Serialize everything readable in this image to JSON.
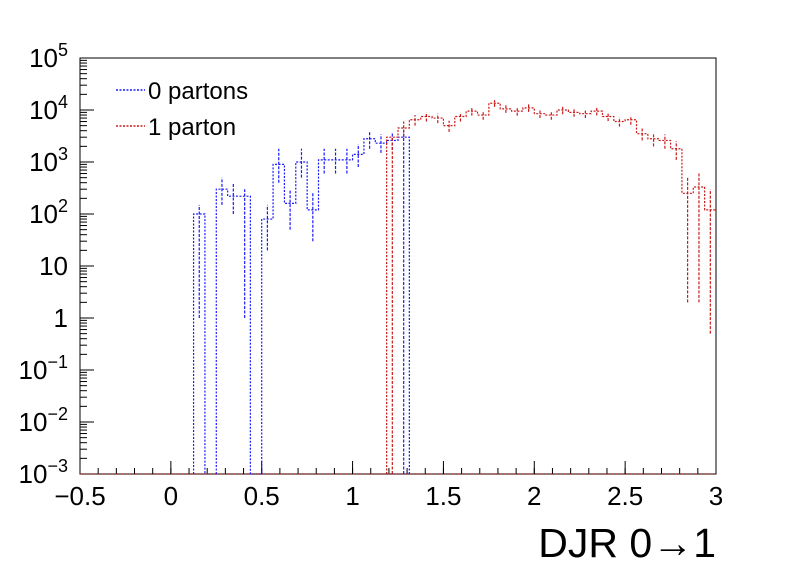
{
  "chart_data": {
    "type": "line",
    "style": "step-histogram",
    "xlabel": "DJR 0→1",
    "ylabel": "",
    "xlim": [
      -0.5,
      3.0
    ],
    "ylim": [
      0.001,
      100000
    ],
    "yscale": "log",
    "grid": false,
    "legend_position": "top-left",
    "x_ticks": [
      {
        "value": -0.5,
        "label": "−0.5"
      },
      {
        "value": 0,
        "label": "0"
      },
      {
        "value": 0.5,
        "label": "0.5"
      },
      {
        "value": 1,
        "label": "1"
      },
      {
        "value": 1.5,
        "label": "1.5"
      },
      {
        "value": 2,
        "label": "2"
      },
      {
        "value": 2.5,
        "label": "2.5"
      },
      {
        "value": 3,
        "label": "3"
      }
    ],
    "y_ticks": [
      {
        "value": 0.001,
        "base": "10",
        "exp": "−3"
      },
      {
        "value": 0.01,
        "base": "10",
        "exp": "−2"
      },
      {
        "value": 0.1,
        "base": "10",
        "exp": "−1"
      },
      {
        "value": 1,
        "base": "1",
        "exp": ""
      },
      {
        "value": 10,
        "base": "10",
        "exp": ""
      },
      {
        "value": 100,
        "base": "10",
        "exp": "2"
      },
      {
        "value": 1000,
        "base": "10",
        "exp": "3"
      },
      {
        "value": 10000,
        "base": "10",
        "exp": "4"
      },
      {
        "value": 100000,
        "base": "10",
        "exp": "5"
      }
    ],
    "bin_width": 0.0625,
    "series": [
      {
        "name": "0 partons",
        "color": "#1a1aff",
        "line_style": "dotted",
        "bins": [
          {
            "lo": 0.125,
            "hi": 0.1875,
            "y": 100,
            "err_lo": 1,
            "err_hi": 150
          },
          {
            "lo": 0.25,
            "hi": 0.3125,
            "y": 300,
            "err_lo": 150,
            "err_hi": 500
          },
          {
            "lo": 0.3125,
            "hi": 0.375,
            "y": 220,
            "err_lo": 100,
            "err_hi": 400
          },
          {
            "lo": 0.375,
            "hi": 0.4375,
            "y": 220,
            "err_lo": 1,
            "err_hi": 300
          },
          {
            "lo": 0.4375,
            "hi": 0.5,
            "y": 0.001
          },
          {
            "lo": 0.5,
            "hi": 0.5625,
            "y": 80,
            "err_lo": 20,
            "err_hi": 150
          },
          {
            "lo": 0.5625,
            "hi": 0.625,
            "y": 900,
            "err_lo": 400,
            "err_hi": 1800
          },
          {
            "lo": 0.625,
            "hi": 0.6875,
            "y": 160,
            "err_lo": 50,
            "err_hi": 300
          },
          {
            "lo": 0.6875,
            "hi": 0.75,
            "y": 1000,
            "err_lo": 500,
            "err_hi": 1800
          },
          {
            "lo": 0.75,
            "hi": 0.8125,
            "y": 120,
            "err_lo": 30,
            "err_hi": 250
          },
          {
            "lo": 0.8125,
            "hi": 0.875,
            "y": 1100,
            "err_lo": 600,
            "err_hi": 1800
          },
          {
            "lo": 0.875,
            "hi": 0.9375,
            "y": 1100,
            "err_lo": 600,
            "err_hi": 1800
          },
          {
            "lo": 0.9375,
            "hi": 1.0,
            "y": 1100,
            "err_lo": 600,
            "err_hi": 1800
          },
          {
            "lo": 1.0,
            "hi": 1.0625,
            "y": 1400,
            "err_lo": 800,
            "err_hi": 2200
          },
          {
            "lo": 1.0625,
            "hi": 1.125,
            "y": 2800,
            "err_lo": 1800,
            "err_hi": 4000
          },
          {
            "lo": 1.125,
            "hi": 1.1875,
            "y": 2300,
            "err_lo": 1500,
            "err_hi": 3400
          },
          {
            "lo": 1.1875,
            "hi": 1.25,
            "y": 2600,
            "err_lo": 1700,
            "err_hi": 3600
          },
          {
            "lo": 1.25,
            "hi": 1.3125,
            "y": 3000,
            "err_lo": 0.001,
            "err_hi": 4200
          }
        ]
      },
      {
        "name": "1 parton",
        "color": "#cc1a1a",
        "line_style": "dotted",
        "bins": [
          {
            "lo": 1.1875,
            "hi": 1.25,
            "y": 3000,
            "err_lo": 0.001,
            "err_hi": 3000
          },
          {
            "lo": 1.25,
            "hi": 1.3125,
            "y": 4500,
            "err_lo": 3000,
            "err_hi": 6000
          },
          {
            "lo": 1.3125,
            "hi": 1.375,
            "y": 6500,
            "err_lo": 5000,
            "err_hi": 8000
          },
          {
            "lo": 1.375,
            "hi": 1.4375,
            "y": 7500,
            "err_lo": 6000,
            "err_hi": 9000
          },
          {
            "lo": 1.4375,
            "hi": 1.5,
            "y": 7000,
            "err_lo": 5600,
            "err_hi": 8500
          },
          {
            "lo": 1.5,
            "hi": 1.5625,
            "y": 5000,
            "err_lo": 3800,
            "err_hi": 6200
          },
          {
            "lo": 1.5625,
            "hi": 1.625,
            "y": 7500,
            "err_lo": 6000,
            "err_hi": 9000
          },
          {
            "lo": 1.625,
            "hi": 1.6875,
            "y": 9500,
            "err_lo": 7800,
            "err_hi": 11200
          },
          {
            "lo": 1.6875,
            "hi": 1.75,
            "y": 8000,
            "err_lo": 6500,
            "err_hi": 9600
          },
          {
            "lo": 1.75,
            "hi": 1.8125,
            "y": 13500,
            "err_lo": 11500,
            "err_hi": 15500
          },
          {
            "lo": 1.8125,
            "hi": 1.875,
            "y": 10500,
            "err_lo": 8800,
            "err_hi": 12300
          },
          {
            "lo": 1.875,
            "hi": 1.9375,
            "y": 9500,
            "err_lo": 7800,
            "err_hi": 11200
          },
          {
            "lo": 1.9375,
            "hi": 2.0,
            "y": 11000,
            "err_lo": 9200,
            "err_hi": 12800
          },
          {
            "lo": 2.0,
            "hi": 2.0625,
            "y": 8500,
            "err_lo": 7000,
            "err_hi": 10000
          },
          {
            "lo": 2.0625,
            "hi": 2.125,
            "y": 8000,
            "err_lo": 6500,
            "err_hi": 9500
          },
          {
            "lo": 2.125,
            "hi": 2.1875,
            "y": 10000,
            "err_lo": 8300,
            "err_hi": 11700
          },
          {
            "lo": 2.1875,
            "hi": 2.25,
            "y": 9000,
            "err_lo": 7400,
            "err_hi": 10600
          },
          {
            "lo": 2.25,
            "hi": 2.3125,
            "y": 8500,
            "err_lo": 7000,
            "err_hi": 10000
          },
          {
            "lo": 2.3125,
            "hi": 2.375,
            "y": 9500,
            "err_lo": 7900,
            "err_hi": 11100
          },
          {
            "lo": 2.375,
            "hi": 2.4375,
            "y": 7500,
            "err_lo": 6100,
            "err_hi": 8900
          },
          {
            "lo": 2.4375,
            "hi": 2.5,
            "y": 6000,
            "err_lo": 4800,
            "err_hi": 7200
          },
          {
            "lo": 2.5,
            "hi": 2.5625,
            "y": 6500,
            "err_lo": 5200,
            "err_hi": 7800
          },
          {
            "lo": 2.5625,
            "hi": 2.625,
            "y": 3500,
            "err_lo": 2600,
            "err_hi": 4400
          },
          {
            "lo": 2.625,
            "hi": 2.6875,
            "y": 2800,
            "err_lo": 2000,
            "err_hi": 3600
          },
          {
            "lo": 2.6875,
            "hi": 2.75,
            "y": 2600,
            "err_lo": 1800,
            "err_hi": 3400
          },
          {
            "lo": 2.75,
            "hi": 2.8125,
            "y": 1800,
            "err_lo": 1100,
            "err_hi": 2500
          },
          {
            "lo": 2.8125,
            "hi": 2.875,
            "y": 250,
            "err_lo": 2,
            "err_hi": 500
          },
          {
            "lo": 2.875,
            "hi": 2.9375,
            "y": 330,
            "err_lo": 2,
            "err_hi": 600
          },
          {
            "lo": 2.9375,
            "hi": 3.0,
            "y": 120,
            "err_lo": 0.5,
            "err_hi": 300
          }
        ]
      }
    ]
  }
}
